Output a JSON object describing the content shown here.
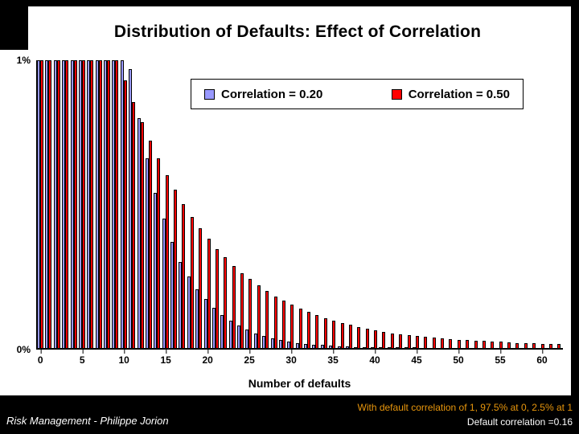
{
  "colors": {
    "slide_background": "#000000",
    "chart_background": "#FFFFFF",
    "series1": "#9999FF",
    "series2": "#FF0000",
    "footer_accent": "#E8960C",
    "footer_text": "#FFFFFF"
  },
  "footer": {
    "left": "Risk Management - Philippe Jorion",
    "right_line1": "With default correlation of 1, 97.5% at 0, 2.5% at 1",
    "right_line2": "Default correlation =0.16"
  },
  "chart_data": {
    "type": "bar",
    "title": "Distribution of Defaults: Effect of Correlation",
    "xlabel": "Number of defaults",
    "ylabel": "",
    "ylim": [
      0,
      1
    ],
    "y_tick_labels": [
      "1%",
      "0%"
    ],
    "x_ticks": [
      0,
      5,
      10,
      15,
      20,
      25,
      30,
      35,
      40,
      45,
      50,
      55,
      60
    ],
    "grid": false,
    "legend_position": "top-center",
    "categories": [
      0,
      1,
      2,
      3,
      4,
      5,
      6,
      7,
      8,
      9,
      10,
      11,
      12,
      13,
      14,
      15,
      16,
      17,
      18,
      19,
      20,
      21,
      22,
      23,
      24,
      25,
      26,
      27,
      28,
      29,
      30,
      31,
      32,
      33,
      34,
      35,
      36,
      37,
      38,
      39,
      40,
      41,
      42,
      43,
      44,
      45,
      46,
      47,
      48,
      49,
      50,
      51,
      52,
      53,
      54,
      55,
      56,
      57,
      58,
      59,
      60,
      61,
      62
    ],
    "series": [
      {
        "name": "Correlation = 0.20",
        "color": "#9999FF",
        "values": [
          1,
          1,
          1,
          1,
          1,
          1,
          1,
          1,
          1,
          1,
          1,
          0.97,
          0.8,
          0.66,
          0.54,
          0.45,
          0.37,
          0.3,
          0.25,
          0.205,
          0.17,
          0.14,
          0.115,
          0.094,
          0.077,
          0.063,
          0.051,
          0.042,
          0.034,
          0.028,
          0.023,
          0.018,
          0.015,
          0.012,
          0.01,
          0.008,
          0.006,
          0.005,
          0.004,
          0.003,
          0.003,
          0.002,
          0.002,
          0.001,
          0.001,
          0.001,
          0,
          0,
          0,
          0,
          0,
          0,
          0,
          0,
          0,
          0,
          0,
          0,
          0,
          0,
          0,
          0,
          0
        ]
      },
      {
        "name": "Correlation = 0.50",
        "color": "#FF0000",
        "values": [
          1,
          1,
          1,
          1,
          1,
          1,
          1,
          1,
          1,
          1,
          0.93,
          0.855,
          0.785,
          0.72,
          0.66,
          0.6,
          0.55,
          0.5,
          0.455,
          0.415,
          0.38,
          0.345,
          0.315,
          0.285,
          0.26,
          0.24,
          0.218,
          0.198,
          0.18,
          0.165,
          0.15,
          0.137,
          0.125,
          0.114,
          0.104,
          0.095,
          0.087,
          0.08,
          0.073,
          0.067,
          0.061,
          0.056,
          0.051,
          0.047,
          0.044,
          0.042,
          0.039,
          0.036,
          0.034,
          0.031,
          0.029,
          0.027,
          0.025,
          0.024,
          0.022,
          0.021,
          0.019,
          0.018,
          0.017,
          0.016,
          0.015,
          0.014,
          0.013
        ]
      }
    ]
  }
}
